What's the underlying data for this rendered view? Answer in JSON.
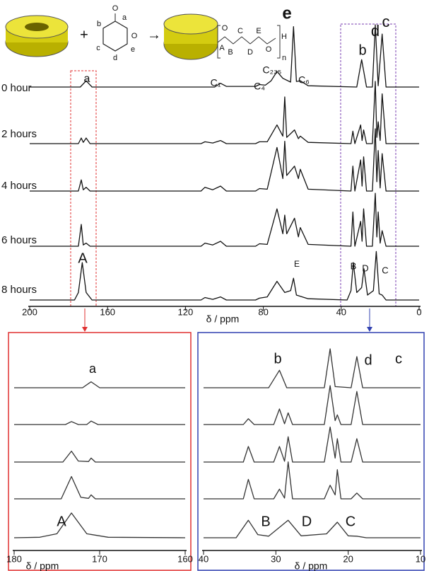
{
  "scheme": {
    "operators": [
      "+",
      "→"
    ],
    "monomer_labels": [
      "O",
      "a",
      "b",
      "O",
      "c",
      "e",
      "d"
    ],
    "polymer_labels": [
      "O",
      "A",
      "B",
      "C",
      "D",
      "E",
      "O",
      "H",
      "n"
    ]
  },
  "chart_data": [
    {
      "type": "line",
      "xlabel": "δ / ppm",
      "xlim": [
        200,
        0
      ],
      "xticks": [
        200,
        160,
        120,
        80,
        40,
        0
      ],
      "annotations": [
        "a",
        "C₁",
        "C₄",
        "C₂₃₅",
        "C₆",
        "e",
        "b",
        "d",
        "c",
        "A",
        "E",
        "B",
        "D",
        "C"
      ],
      "series": [
        {
          "name": "0 hour",
          "color": "#111111",
          "x": [
            200,
            174,
            171,
            168,
            105,
            102,
            99,
            84,
            82,
            79,
            76,
            73,
            70,
            66,
            64.5,
            63,
            61,
            57,
            32,
            29.5,
            27,
            24,
            22.5,
            21,
            19,
            17,
            0
          ],
          "values": [
            0,
            0,
            10,
            0,
            0,
            6,
            1,
            1,
            4,
            3,
            10,
            25,
            14,
            8,
            97,
            9,
            10,
            2,
            0,
            44,
            0,
            0,
            100,
            2,
            85,
            0,
            0
          ]
        },
        {
          "name": "2 hours",
          "color": "#111111",
          "x": [
            200,
            175,
            173.5,
            172.5,
            171,
            169,
            112,
            110,
            106,
            102,
            99,
            84,
            82,
            78,
            73,
            70,
            69,
            68,
            64,
            62,
            61,
            57,
            35,
            34,
            33,
            30,
            29.3,
            28.5,
            27,
            24,
            22.5,
            21.7,
            21,
            20,
            19,
            17,
            0
          ],
          "values": [
            0,
            0,
            9,
            2,
            9,
            0,
            0,
            3,
            1,
            5,
            0,
            0,
            3,
            3,
            30,
            12,
            75,
            10,
            22,
            8,
            12,
            2,
            0,
            20,
            0,
            30,
            5,
            22,
            0,
            0,
            100,
            10,
            35,
            5,
            80,
            0,
            0
          ]
        },
        {
          "name": "4 hours",
          "color": "#111111",
          "x": [
            200,
            175,
            173.5,
            172.5,
            171,
            169,
            112,
            110,
            106,
            102,
            99,
            84,
            82,
            78,
            73,
            70,
            69,
            68,
            64,
            62,
            61,
            57,
            35,
            34,
            33,
            30,
            29.3,
            28.5,
            27,
            24,
            22.5,
            21.7,
            21,
            20,
            19,
            17,
            0
          ],
          "values": [
            0,
            0,
            18,
            2,
            6,
            0,
            0,
            6,
            2,
            8,
            0,
            0,
            4,
            3,
            70,
            20,
            80,
            25,
            40,
            20,
            35,
            3,
            0,
            40,
            0,
            50,
            8,
            55,
            0,
            0,
            100,
            15,
            65,
            5,
            60,
            0,
            0
          ]
        },
        {
          "name": "6 hours",
          "color": "#111111",
          "x": [
            200,
            175,
            173.5,
            172.5,
            171,
            169,
            112,
            110,
            106,
            102,
            99,
            84,
            82,
            78,
            73,
            70,
            69,
            68,
            64,
            62,
            61,
            57,
            35,
            34,
            33,
            30,
            29.3,
            28.5,
            27,
            24,
            22.5,
            21.7,
            21,
            20,
            19,
            17,
            0
          ],
          "values": [
            0,
            0,
            35,
            2,
            5,
            0,
            0,
            5,
            2,
            8,
            0,
            0,
            4,
            3,
            60,
            20,
            50,
            20,
            45,
            15,
            30,
            3,
            0,
            55,
            0,
            40,
            8,
            60,
            0,
            0,
            85,
            15,
            55,
            5,
            25,
            0,
            0
          ]
        },
        {
          "name": "8 hours",
          "color": "#111111",
          "x": [
            200,
            177,
            175,
            173,
            171,
            168,
            112,
            110,
            106,
            102,
            99,
            84,
            82,
            78,
            73,
            69,
            66,
            64.5,
            63,
            57,
            37,
            35,
            33.8,
            32,
            29.5,
            28.3,
            26.5,
            23.5,
            22,
            20.5,
            19,
            17,
            0
          ],
          "values": [
            0,
            0,
            12,
            60,
            12,
            0,
            0,
            4,
            1,
            5,
            0,
            0,
            3,
            5,
            30,
            12,
            15,
            35,
            8,
            2,
            0,
            15,
            60,
            12,
            20,
            50,
            8,
            15,
            78,
            10,
            8,
            0,
            0
          ]
        }
      ]
    },
    {
      "type": "line",
      "xlabel": "δ / ppm",
      "xlim": [
        180,
        160
      ],
      "xticks": [
        180,
        170,
        160
      ],
      "annotations": [
        "a",
        "A"
      ],
      "series": [
        {
          "color": "#333333",
          "x": [
            180,
            172,
            171,
            170,
            160
          ],
          "values": [
            0,
            0,
            12,
            0,
            0
          ]
        },
        {
          "color": "#333333",
          "x": [
            180,
            174,
            173.3,
            172.5,
            171.5,
            171,
            170.2,
            160
          ],
          "values": [
            0,
            0,
            6,
            0,
            0,
            7,
            0,
            0
          ]
        },
        {
          "color": "#333333",
          "x": [
            180,
            174.3,
            173.3,
            172.5,
            171.3,
            171,
            170.5,
            160
          ],
          "values": [
            0,
            0,
            22,
            2,
            1,
            8,
            0,
            0
          ]
        },
        {
          "color": "#333333",
          "x": [
            180,
            174.5,
            173.3,
            172.2,
            171.3,
            171,
            170.5,
            160
          ],
          "values": [
            0,
            0,
            45,
            3,
            1,
            8,
            0,
            0
          ]
        },
        {
          "color": "#333333",
          "x": [
            180,
            177,
            175,
            173.3,
            171.5,
            169,
            160
          ],
          "values": [
            0,
            1,
            8,
            50,
            8,
            1,
            0
          ]
        }
      ]
    },
    {
      "type": "line",
      "xlabel": "δ / ppm",
      "xlim": [
        40,
        10
      ],
      "xticks": [
        40,
        30,
        20,
        10
      ],
      "annotations": [
        "b",
        "d",
        "c",
        "B",
        "D",
        "C"
      ],
      "series": [
        {
          "color": "#333333",
          "x": [
            40,
            31,
            29.5,
            28.5,
            23.3,
            22.5,
            21.8,
            19.6,
            18.8,
            18,
            10
          ],
          "values": [
            0,
            0,
            45,
            0,
            0,
            100,
            3,
            0,
            80,
            0,
            0
          ]
        },
        {
          "color": "#333333",
          "x": [
            40,
            34.5,
            33.8,
            33,
            30.3,
            29.5,
            28.8,
            28.3,
            27.7,
            23.3,
            22.5,
            21.8,
            21.5,
            21,
            19.6,
            18.8,
            18,
            10
          ],
          "values": [
            0,
            0,
            15,
            0,
            0,
            40,
            2,
            30,
            0,
            0,
            100,
            10,
            25,
            0,
            0,
            85,
            0,
            0
          ]
        },
        {
          "color": "#333333",
          "x": [
            40,
            34.5,
            33.8,
            33,
            30.3,
            29.5,
            28.8,
            28.3,
            27.7,
            23.3,
            22.5,
            21.8,
            21.5,
            21,
            19.6,
            18.8,
            18,
            10
          ],
          "values": [
            0,
            0,
            40,
            0,
            0,
            40,
            2,
            65,
            0,
            0,
            90,
            10,
            60,
            0,
            0,
            60,
            0,
            0
          ]
        },
        {
          "color": "#333333",
          "x": [
            40,
            34.5,
            33.8,
            33,
            30.3,
            29.5,
            28.8,
            28.3,
            27.7,
            23.3,
            22.5,
            21.8,
            21.5,
            21,
            19.6,
            18.8,
            18,
            10
          ],
          "values": [
            0,
            0,
            50,
            0,
            0,
            25,
            2,
            95,
            0,
            0,
            35,
            10,
            75,
            0,
            0,
            15,
            0,
            0
          ]
        },
        {
          "color": "#333333",
          "x": [
            40,
            35.5,
            33.8,
            32.5,
            31,
            28.3,
            26.5,
            23,
            21.5,
            20,
            18.8,
            17.5,
            10
          ],
          "values": [
            0,
            0,
            45,
            8,
            4,
            45,
            5,
            10,
            40,
            5,
            4,
            0,
            0
          ]
        }
      ]
    }
  ]
}
